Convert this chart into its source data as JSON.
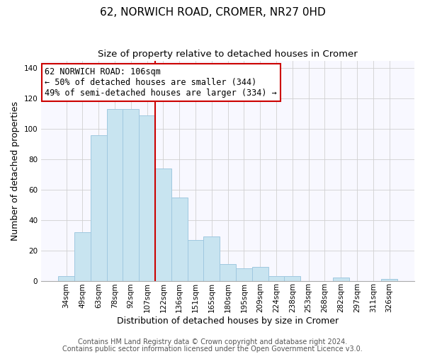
{
  "title": "62, NORWICH ROAD, CROMER, NR27 0HD",
  "subtitle": "Size of property relative to detached houses in Cromer",
  "xlabel": "Distribution of detached houses by size in Cromer",
  "ylabel": "Number of detached properties",
  "bar_labels": [
    "34sqm",
    "49sqm",
    "63sqm",
    "78sqm",
    "92sqm",
    "107sqm",
    "122sqm",
    "136sqm",
    "151sqm",
    "165sqm",
    "180sqm",
    "195sqm",
    "209sqm",
    "224sqm",
    "238sqm",
    "253sqm",
    "268sqm",
    "282sqm",
    "297sqm",
    "311sqm",
    "326sqm"
  ],
  "bar_values": [
    3,
    32,
    96,
    113,
    113,
    109,
    74,
    55,
    27,
    29,
    11,
    8,
    9,
    3,
    3,
    0,
    0,
    2,
    0,
    0,
    1
  ],
  "bar_color": "#c8e4f0",
  "bar_edge_color": "#a0c8e0",
  "vline_x_index": 5,
  "vline_color": "#cc0000",
  "annotation_line1": "62 NORWICH ROAD: 106sqm",
  "annotation_line2": "← 50% of detached houses are smaller (344)",
  "annotation_line3": "49% of semi-detached houses are larger (334) →",
  "annotation_box_facecolor": "#ffffff",
  "annotation_box_edgecolor": "#cc0000",
  "ylim": [
    0,
    145
  ],
  "yticks": [
    0,
    20,
    40,
    60,
    80,
    100,
    120,
    140
  ],
  "footer1": "Contains HM Land Registry data © Crown copyright and database right 2024.",
  "footer2": "Contains public sector information licensed under the Open Government Licence v3.0.",
  "title_fontsize": 11,
  "subtitle_fontsize": 9.5,
  "xlabel_fontsize": 9,
  "ylabel_fontsize": 9,
  "tick_fontsize": 7.5,
  "annotation_fontsize": 8.5,
  "footer_fontsize": 7
}
